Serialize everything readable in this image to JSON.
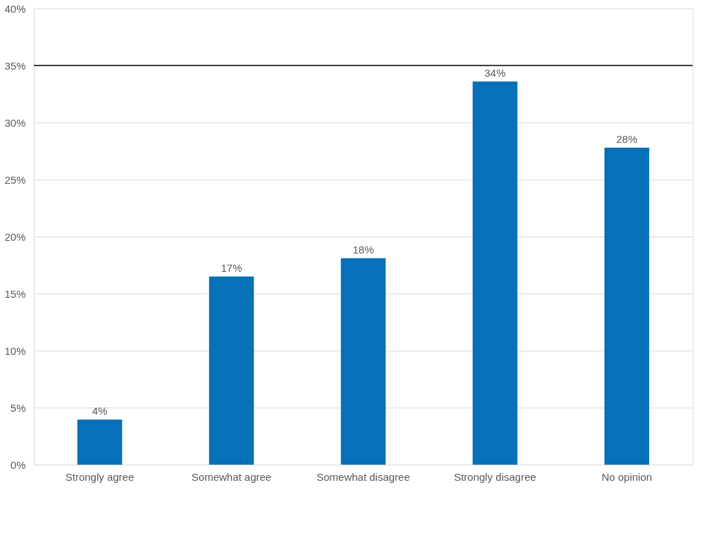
{
  "chart_data": {
    "type": "bar",
    "categories": [
      "Strongly agree",
      "Somewhat agree",
      "Somewhat disagree",
      "Strongly disagree",
      "No opinion"
    ],
    "values": [
      3.95,
      16.5,
      18.1,
      33.6,
      27.8
    ],
    "value_labels": [
      "4%",
      "17%",
      "18%",
      "34%",
      "28%"
    ],
    "color": "#0670b8",
    "ylim": [
      0,
      40
    ],
    "yticks": [
      {
        "value": 0,
        "label": "0%"
      },
      {
        "value": 5,
        "label": "5%"
      },
      {
        "value": 10,
        "label": "10%"
      },
      {
        "value": 15,
        "label": "15%"
      },
      {
        "value": 20,
        "label": "20%"
      },
      {
        "value": 25,
        "label": "25%"
      },
      {
        "value": 30,
        "label": "30%"
      },
      {
        "value": 35,
        "label": "35%"
      },
      {
        "value": 40,
        "label": "40%"
      }
    ],
    "grid": "y",
    "ref_lines": [
      {
        "axis": "y",
        "value": 35,
        "color": "#000000"
      }
    ]
  }
}
